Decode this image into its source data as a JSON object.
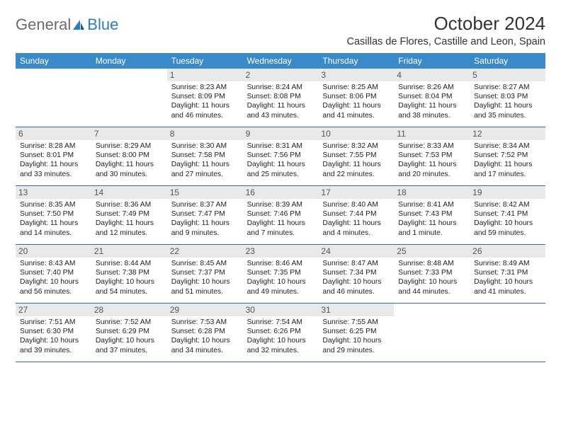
{
  "logo": {
    "part1": "General",
    "part2": "Blue"
  },
  "title": "October 2024",
  "location": "Casillas de Flores, Castille and Leon, Spain",
  "colors": {
    "header_bg": "#3a8ac9",
    "header_text": "#ffffff",
    "daynum_bg": "#e9e9e9",
    "row_border": "#2f6fa8",
    "logo_gray": "#6a6a6a",
    "logo_blue": "#2b7bbf"
  },
  "day_labels": [
    "Sunday",
    "Monday",
    "Tuesday",
    "Wednesday",
    "Thursday",
    "Friday",
    "Saturday"
  ],
  "weeks": [
    [
      {
        "n": "",
        "empty": true
      },
      {
        "n": "",
        "empty": true
      },
      {
        "n": "1",
        "sunrise": "Sunrise: 8:23 AM",
        "sunset": "Sunset: 8:09 PM",
        "daylight": "Daylight: 11 hours and 46 minutes."
      },
      {
        "n": "2",
        "sunrise": "Sunrise: 8:24 AM",
        "sunset": "Sunset: 8:08 PM",
        "daylight": "Daylight: 11 hours and 43 minutes."
      },
      {
        "n": "3",
        "sunrise": "Sunrise: 8:25 AM",
        "sunset": "Sunset: 8:06 PM",
        "daylight": "Daylight: 11 hours and 41 minutes."
      },
      {
        "n": "4",
        "sunrise": "Sunrise: 8:26 AM",
        "sunset": "Sunset: 8:04 PM",
        "daylight": "Daylight: 11 hours and 38 minutes."
      },
      {
        "n": "5",
        "sunrise": "Sunrise: 8:27 AM",
        "sunset": "Sunset: 8:03 PM",
        "daylight": "Daylight: 11 hours and 35 minutes."
      }
    ],
    [
      {
        "n": "6",
        "sunrise": "Sunrise: 8:28 AM",
        "sunset": "Sunset: 8:01 PM",
        "daylight": "Daylight: 11 hours and 33 minutes."
      },
      {
        "n": "7",
        "sunrise": "Sunrise: 8:29 AM",
        "sunset": "Sunset: 8:00 PM",
        "daylight": "Daylight: 11 hours and 30 minutes."
      },
      {
        "n": "8",
        "sunrise": "Sunrise: 8:30 AM",
        "sunset": "Sunset: 7:58 PM",
        "daylight": "Daylight: 11 hours and 27 minutes."
      },
      {
        "n": "9",
        "sunrise": "Sunrise: 8:31 AM",
        "sunset": "Sunset: 7:56 PM",
        "daylight": "Daylight: 11 hours and 25 minutes."
      },
      {
        "n": "10",
        "sunrise": "Sunrise: 8:32 AM",
        "sunset": "Sunset: 7:55 PM",
        "daylight": "Daylight: 11 hours and 22 minutes."
      },
      {
        "n": "11",
        "sunrise": "Sunrise: 8:33 AM",
        "sunset": "Sunset: 7:53 PM",
        "daylight": "Daylight: 11 hours and 20 minutes."
      },
      {
        "n": "12",
        "sunrise": "Sunrise: 8:34 AM",
        "sunset": "Sunset: 7:52 PM",
        "daylight": "Daylight: 11 hours and 17 minutes."
      }
    ],
    [
      {
        "n": "13",
        "sunrise": "Sunrise: 8:35 AM",
        "sunset": "Sunset: 7:50 PM",
        "daylight": "Daylight: 11 hours and 14 minutes."
      },
      {
        "n": "14",
        "sunrise": "Sunrise: 8:36 AM",
        "sunset": "Sunset: 7:49 PM",
        "daylight": "Daylight: 11 hours and 12 minutes."
      },
      {
        "n": "15",
        "sunrise": "Sunrise: 8:37 AM",
        "sunset": "Sunset: 7:47 PM",
        "daylight": "Daylight: 11 hours and 9 minutes."
      },
      {
        "n": "16",
        "sunrise": "Sunrise: 8:39 AM",
        "sunset": "Sunset: 7:46 PM",
        "daylight": "Daylight: 11 hours and 7 minutes."
      },
      {
        "n": "17",
        "sunrise": "Sunrise: 8:40 AM",
        "sunset": "Sunset: 7:44 PM",
        "daylight": "Daylight: 11 hours and 4 minutes."
      },
      {
        "n": "18",
        "sunrise": "Sunrise: 8:41 AM",
        "sunset": "Sunset: 7:43 PM",
        "daylight": "Daylight: 11 hours and 1 minute."
      },
      {
        "n": "19",
        "sunrise": "Sunrise: 8:42 AM",
        "sunset": "Sunset: 7:41 PM",
        "daylight": "Daylight: 10 hours and 59 minutes."
      }
    ],
    [
      {
        "n": "20",
        "sunrise": "Sunrise: 8:43 AM",
        "sunset": "Sunset: 7:40 PM",
        "daylight": "Daylight: 10 hours and 56 minutes."
      },
      {
        "n": "21",
        "sunrise": "Sunrise: 8:44 AM",
        "sunset": "Sunset: 7:38 PM",
        "daylight": "Daylight: 10 hours and 54 minutes."
      },
      {
        "n": "22",
        "sunrise": "Sunrise: 8:45 AM",
        "sunset": "Sunset: 7:37 PM",
        "daylight": "Daylight: 10 hours and 51 minutes."
      },
      {
        "n": "23",
        "sunrise": "Sunrise: 8:46 AM",
        "sunset": "Sunset: 7:35 PM",
        "daylight": "Daylight: 10 hours and 49 minutes."
      },
      {
        "n": "24",
        "sunrise": "Sunrise: 8:47 AM",
        "sunset": "Sunset: 7:34 PM",
        "daylight": "Daylight: 10 hours and 46 minutes."
      },
      {
        "n": "25",
        "sunrise": "Sunrise: 8:48 AM",
        "sunset": "Sunset: 7:33 PM",
        "daylight": "Daylight: 10 hours and 44 minutes."
      },
      {
        "n": "26",
        "sunrise": "Sunrise: 8:49 AM",
        "sunset": "Sunset: 7:31 PM",
        "daylight": "Daylight: 10 hours and 41 minutes."
      }
    ],
    [
      {
        "n": "27",
        "sunrise": "Sunrise: 7:51 AM",
        "sunset": "Sunset: 6:30 PM",
        "daylight": "Daylight: 10 hours and 39 minutes."
      },
      {
        "n": "28",
        "sunrise": "Sunrise: 7:52 AM",
        "sunset": "Sunset: 6:29 PM",
        "daylight": "Daylight: 10 hours and 37 minutes."
      },
      {
        "n": "29",
        "sunrise": "Sunrise: 7:53 AM",
        "sunset": "Sunset: 6:28 PM",
        "daylight": "Daylight: 10 hours and 34 minutes."
      },
      {
        "n": "30",
        "sunrise": "Sunrise: 7:54 AM",
        "sunset": "Sunset: 6:26 PM",
        "daylight": "Daylight: 10 hours and 32 minutes."
      },
      {
        "n": "31",
        "sunrise": "Sunrise: 7:55 AM",
        "sunset": "Sunset: 6:25 PM",
        "daylight": "Daylight: 10 hours and 29 minutes."
      },
      {
        "n": "",
        "empty": true
      },
      {
        "n": "",
        "empty": true
      }
    ]
  ]
}
